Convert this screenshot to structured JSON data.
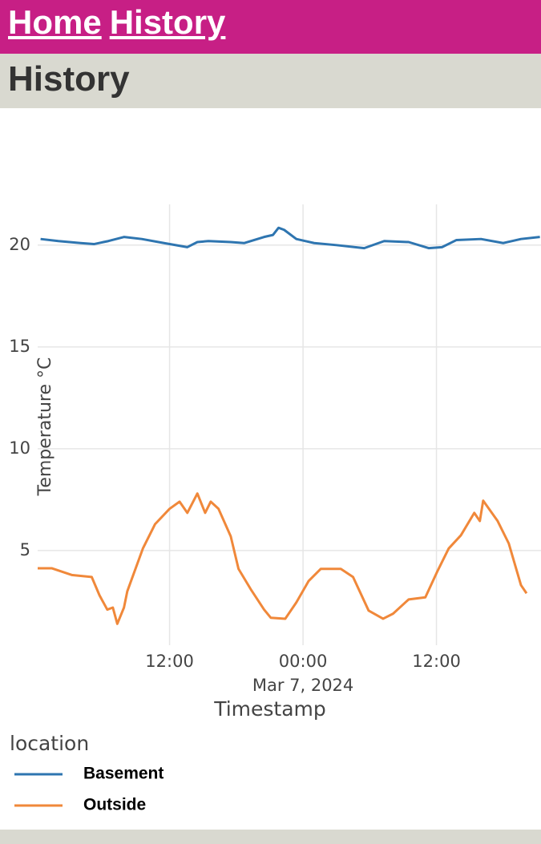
{
  "nav": {
    "links": [
      "Home",
      "History"
    ]
  },
  "header": {
    "title": "History"
  },
  "chart_data": {
    "type": "line",
    "x_label": "Timestamp",
    "y_label": "Temperature °C",
    "legend_title": "location",
    "xlim": [
      0.14,
      45.4
    ],
    "xticks": [
      {
        "value": 12,
        "label": "12:00"
      },
      {
        "value": 24,
        "label": "00:00",
        "sublabel": "Mar 7, 2024"
      },
      {
        "value": 36,
        "label": "12:00"
      }
    ],
    "ylim": [
      0.35,
      22
    ],
    "yticks": [
      5,
      10,
      15,
      20
    ],
    "grid": true,
    "series": [
      {
        "name": "Basement",
        "color": "#2e75b0",
        "x": [
          0.4,
          2,
          4,
          5.2,
          6.5,
          7.9,
          9.5,
          11.5,
          13.6,
          14.5,
          15.5,
          17.5,
          18.7,
          20.5,
          21.3,
          21.8,
          22.3,
          23.4,
          25,
          27,
          29.5,
          31.3,
          33.5,
          35.3,
          36.5,
          37.8,
          40,
          42,
          43.6,
          45.3
        ],
        "values": [
          20.3,
          20.2,
          20.1,
          20.05,
          20.2,
          20.4,
          20.3,
          20.1,
          19.9,
          20.15,
          20.2,
          20.15,
          20.1,
          20.4,
          20.5,
          20.85,
          20.75,
          20.3,
          20.1,
          20.0,
          19.85,
          20.2,
          20.15,
          19.85,
          19.9,
          20.25,
          20.3,
          20.1,
          20.3,
          20.4
        ]
      },
      {
        "name": "Outside",
        "color": "#f0883a",
        "x": [
          0.14,
          1.4,
          3.2,
          5.0,
          5.7,
          6.4,
          6.9,
          7.3,
          7.9,
          8.2,
          9.6,
          10.7,
          12,
          12.9,
          13.6,
          14.5,
          15.2,
          15.7,
          16.4,
          17.5,
          18.2,
          19.3,
          20.5,
          21.1,
          22.4,
          23.4,
          24.5,
          25.6,
          27.4,
          28.5,
          29.9,
          31.2,
          32.1,
          33.5,
          35,
          36.1,
          37.1,
          38.2,
          39.4,
          39.9,
          40.2,
          41.5,
          42.5,
          43.6,
          44.1
        ],
        "values": [
          4.13,
          4.13,
          3.8,
          3.7,
          2.8,
          2.1,
          2.2,
          1.4,
          2.2,
          3.0,
          5.1,
          6.3,
          7.05,
          7.4,
          6.85,
          7.8,
          6.85,
          7.4,
          7.05,
          5.7,
          4.1,
          3.1,
          2.1,
          1.7,
          1.65,
          2.45,
          3.5,
          4.1,
          4.1,
          3.7,
          2.05,
          1.65,
          1.9,
          2.6,
          2.7,
          4.0,
          5.1,
          5.75,
          6.85,
          6.45,
          7.45,
          6.45,
          5.35,
          3.3,
          2.9
        ]
      }
    ]
  }
}
